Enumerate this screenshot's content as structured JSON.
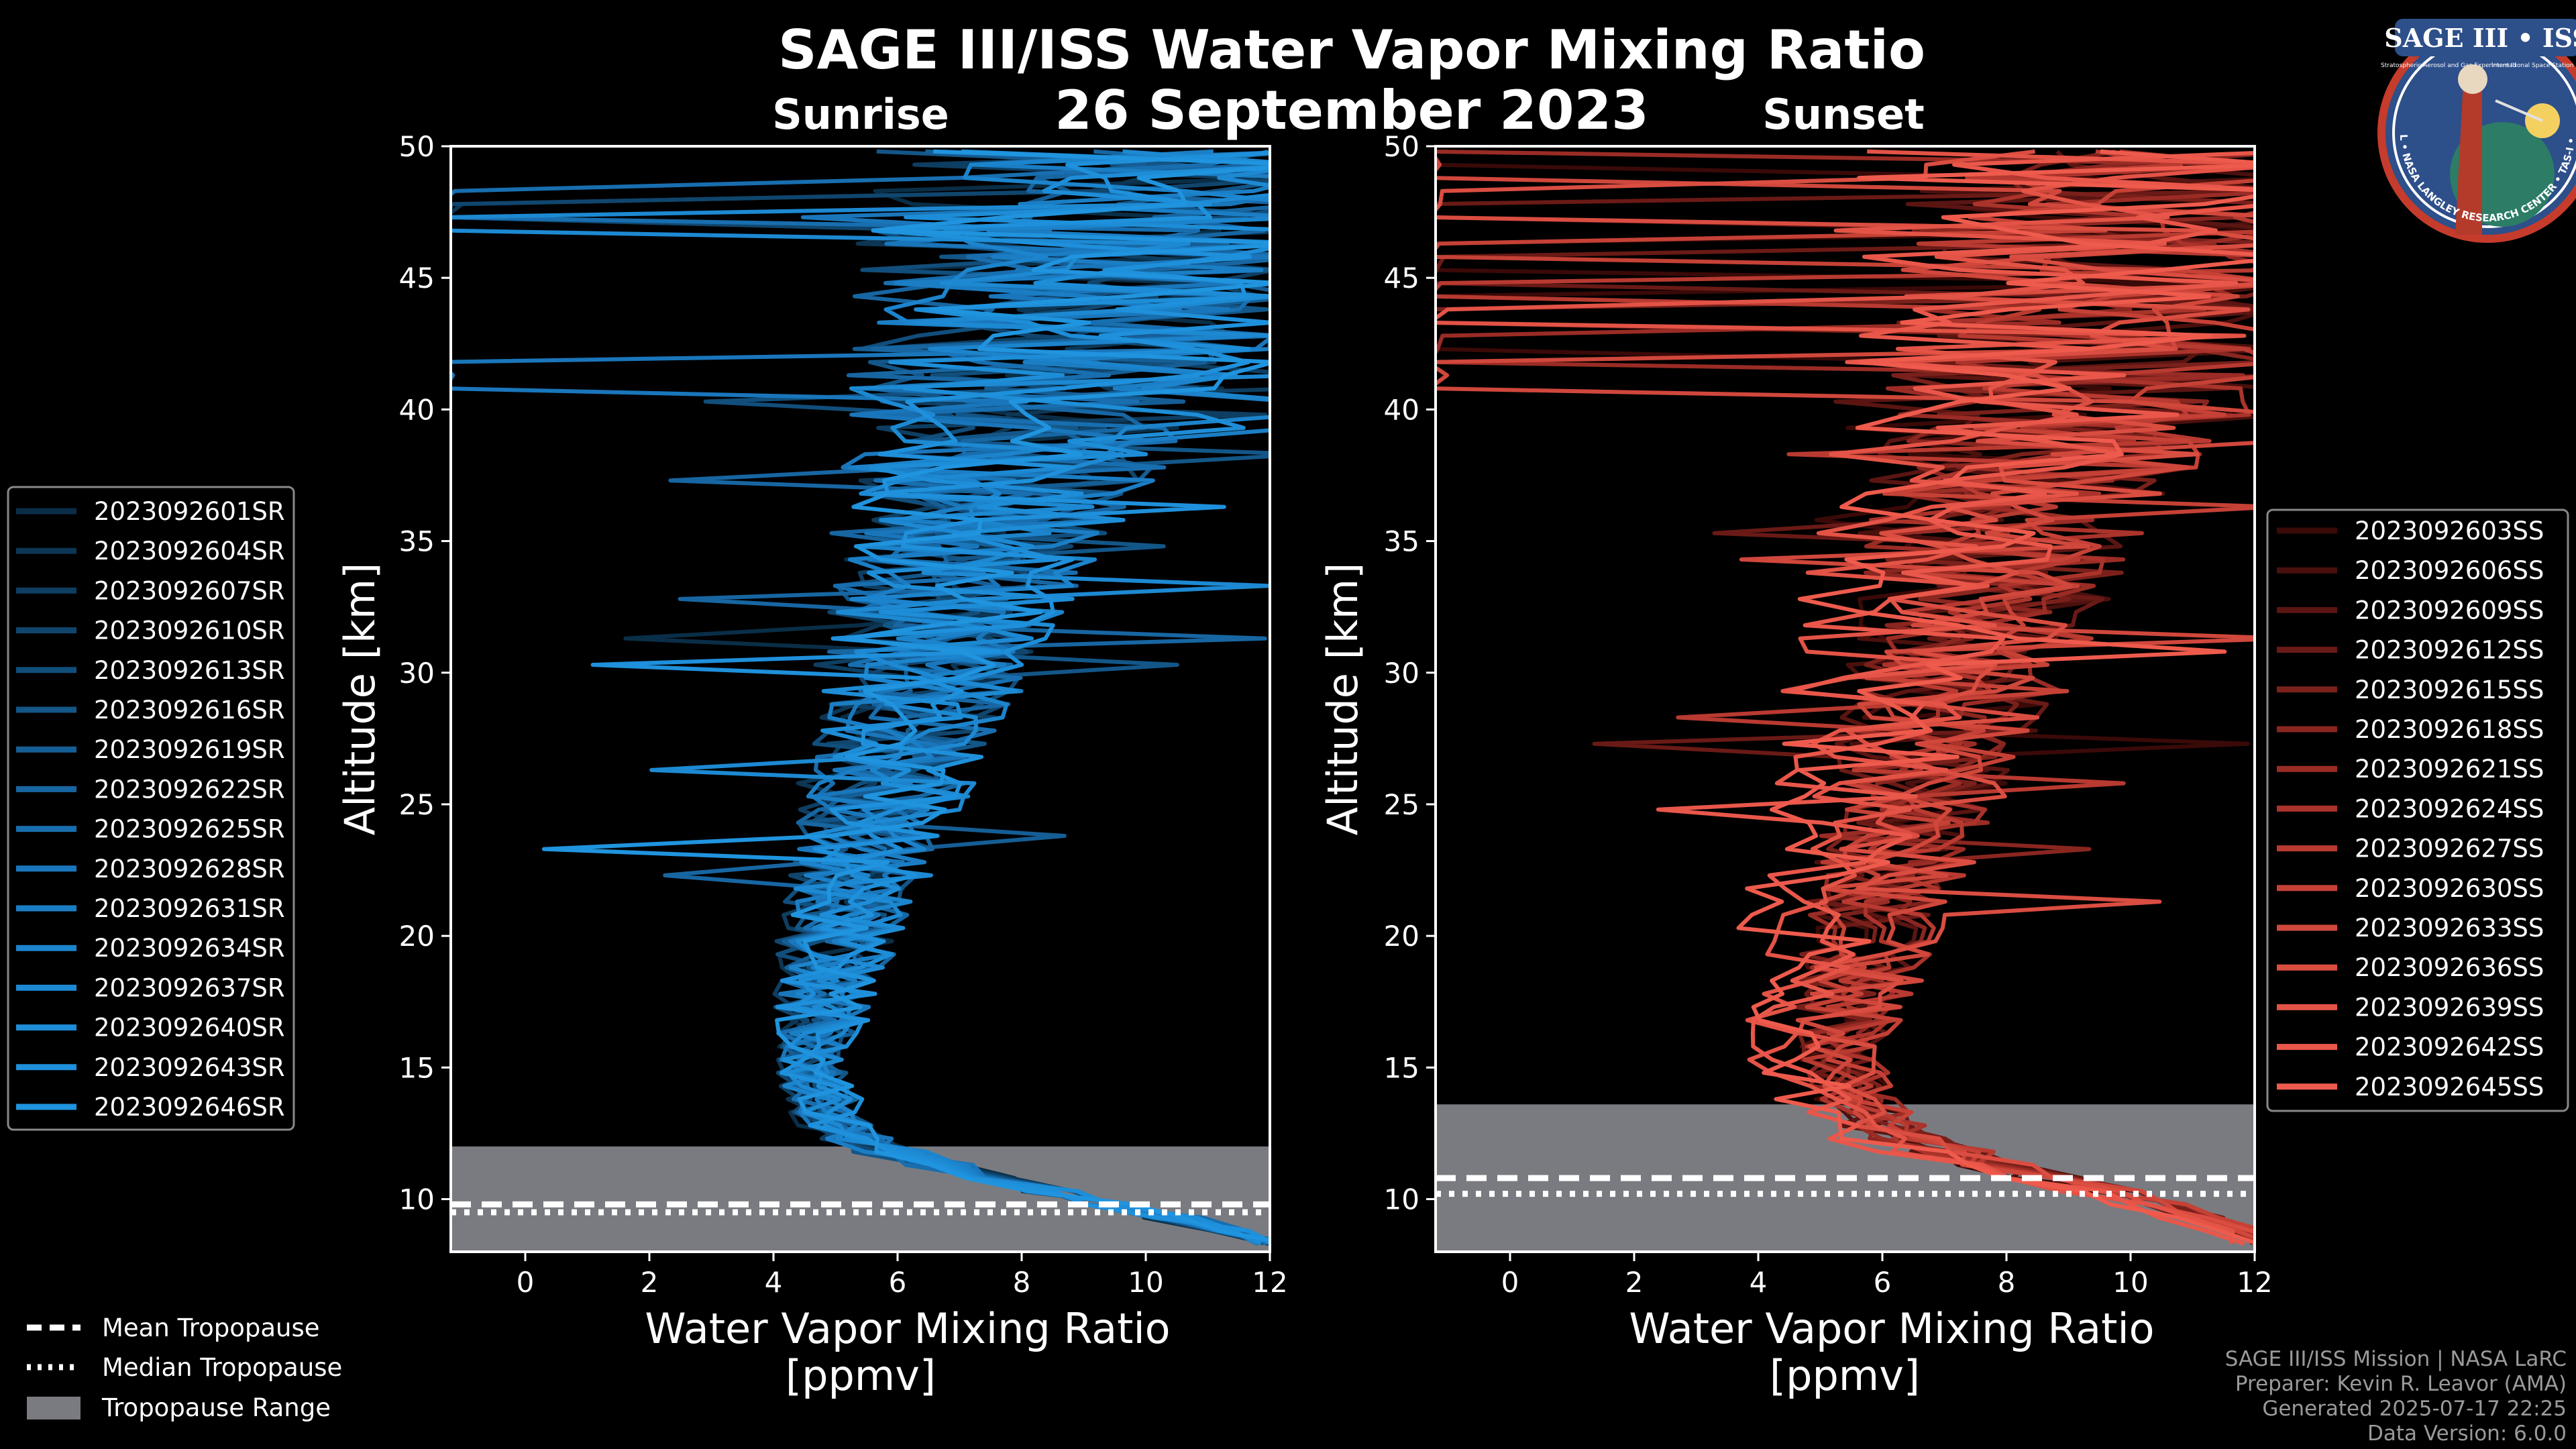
{
  "colors": {
    "background": "#000000",
    "sunrise_base": "#1f8fd8",
    "sunset_base": "#ee5a4c",
    "tropopause_range": "#7a7b80",
    "mean_line": "#ffffff",
    "median_line": "#ffffff"
  },
  "header": {
    "title": "SAGE III/ISS Water Vapor Mixing Ratio",
    "date": "26 September 2023",
    "left_panel_title": "Sunrise",
    "right_panel_title": "Sunset"
  },
  "logo": {
    "text_top": "SAGE III • ISS",
    "text_sub_left": "Stratospheric Aerosol and Gas Experiment III",
    "text_sub_right": "International Space Station",
    "text_ring": "BALL • NASA LANGLEY RESEARCH CENTER • TAS-I • ESA",
    "icon": "mission-patch-icon"
  },
  "credits": {
    "line1": "SAGE III/ISS Mission | NASA LaRC",
    "line2": "Preparer: Kevin R. Leavor (AMA)",
    "line3": "Generated 2025-07-17 22:25",
    "line4": "Data Version: 6.0.0"
  },
  "tropopause_legend": {
    "mean": "Mean Tropopause",
    "median": "Median Tropopause",
    "range": "Tropopause Range"
  },
  "chart_data": [
    {
      "type": "line",
      "panel": "sunrise",
      "title": "Sunrise",
      "xlabel": "Water Vapor Mixing Ratio\n[ppmv]",
      "xlabel_line1": "Water Vapor Mixing Ratio",
      "xlabel_line2": "[ppmv]",
      "ylabel": "Altitude [km]",
      "xlim": [
        -1.2,
        12
      ],
      "ylim": [
        8,
        50
      ],
      "xticks": [
        "0",
        "2",
        "4",
        "6",
        "8",
        "10",
        "12"
      ],
      "xtick_values": [
        0,
        2,
        4,
        6,
        8,
        10,
        12
      ],
      "yticks": [
        "10",
        "15",
        "20",
        "25",
        "30",
        "35",
        "40",
        "45",
        "50"
      ],
      "ytick_values": [
        10,
        15,
        20,
        25,
        30,
        35,
        40,
        45,
        50
      ],
      "grid": false,
      "legend_position": "left",
      "tropopause": {
        "mean_km": 9.8,
        "median_km": 9.5,
        "range_km": [
          8,
          12
        ]
      },
      "profile_shape": {
        "altitude_km": [
          8.5,
          10,
          11,
          12,
          13,
          15,
          17,
          20,
          25,
          30,
          35,
          40,
          45,
          50
        ],
        "median_ppmv": [
          12,
          9,
          7,
          5.5,
          4.8,
          4.5,
          4.6,
          5.0,
          5.6,
          6.3,
          7.0,
          8.0,
          9.0,
          10.0
        ],
        "noise_ppmv": [
          0.3,
          0.6,
          0.6,
          0.6,
          0.6,
          0.6,
          0.8,
          1.0,
          1.3,
          1.7,
          2.2,
          3.0,
          3.8,
          4.5
        ]
      },
      "series": [
        {
          "name": "2023092601SR",
          "color": "#0a2e47"
        },
        {
          "name": "2023092604SR",
          "color": "#0c3654"
        },
        {
          "name": "2023092607SR",
          "color": "#0e3e61"
        },
        {
          "name": "2023092610SR",
          "color": "#10466e"
        },
        {
          "name": "2023092613SR",
          "color": "#114e7b"
        },
        {
          "name": "2023092616SR",
          "color": "#135688"
        },
        {
          "name": "2023092619SR",
          "color": "#155e95"
        },
        {
          "name": "2023092622SR",
          "color": "#1766a2"
        },
        {
          "name": "2023092625SR",
          "color": "#186eaf"
        },
        {
          "name": "2023092628SR",
          "color": "#1a76bb"
        },
        {
          "name": "2023092631SR",
          "color": "#1b7ec5"
        },
        {
          "name": "2023092634SR",
          "color": "#1c84cc"
        },
        {
          "name": "2023092637SR",
          "color": "#1d89d2"
        },
        {
          "name": "2023092640SR",
          "color": "#1e8dd7"
        },
        {
          "name": "2023092643SR",
          "color": "#1f90db"
        },
        {
          "name": "2023092646SR",
          "color": "#2094de"
        }
      ]
    },
    {
      "type": "line",
      "panel": "sunset",
      "title": "Sunset",
      "xlabel": "Water Vapor Mixing Ratio\n[ppmv]",
      "xlabel_line1": "Water Vapor Mixing Ratio",
      "xlabel_line2": "[ppmv]",
      "ylabel": "Altitude [km]",
      "xlim": [
        -1.2,
        12
      ],
      "ylim": [
        8,
        50
      ],
      "xticks": [
        "0",
        "2",
        "4",
        "6",
        "8",
        "10",
        "12"
      ],
      "xtick_values": [
        0,
        2,
        4,
        6,
        8,
        10,
        12
      ],
      "yticks": [
        "10",
        "15",
        "20",
        "25",
        "30",
        "35",
        "40",
        "45",
        "50"
      ],
      "ytick_values": [
        10,
        15,
        20,
        25,
        30,
        35,
        40,
        45,
        50
      ],
      "grid": false,
      "legend_position": "right",
      "tropopause": {
        "mean_km": 10.8,
        "median_km": 10.2,
        "range_km": [
          8,
          13.6
        ]
      },
      "profile_shape": {
        "altitude_km": [
          8.5,
          10,
          11,
          12,
          13,
          15,
          17,
          20,
          25,
          30,
          35,
          40,
          45,
          50
        ],
        "median_ppmv": [
          12,
          10,
          8,
          6.5,
          5.5,
          5.0,
          5.0,
          5.3,
          6.0,
          6.8,
          7.5,
          8.5,
          9.5,
          10.5
        ],
        "noise_ppmv": [
          0.3,
          0.5,
          0.6,
          0.7,
          0.7,
          0.7,
          0.9,
          1.1,
          1.4,
          1.8,
          2.3,
          3.0,
          3.8,
          4.5
        ]
      },
      "series": [
        {
          "name": "2023092603SS",
          "color": "#3a0a08"
        },
        {
          "name": "2023092606SS",
          "color": "#4a100d"
        },
        {
          "name": "2023092609SS",
          "color": "#5a1512"
        },
        {
          "name": "2023092612SS",
          "color": "#6a1a16"
        },
        {
          "name": "2023092615SS",
          "color": "#7a201b"
        },
        {
          "name": "2023092618SS",
          "color": "#8a2620"
        },
        {
          "name": "2023092621SS",
          "color": "#9a2c25"
        },
        {
          "name": "2023092624SS",
          "color": "#aa332b"
        },
        {
          "name": "2023092627SS",
          "color": "#b83a31"
        },
        {
          "name": "2023092630SS",
          "color": "#c54136"
        },
        {
          "name": "2023092633SS",
          "color": "#d0473c"
        },
        {
          "name": "2023092636SS",
          "color": "#da4d41"
        },
        {
          "name": "2023092639SS",
          "color": "#e35346"
        },
        {
          "name": "2023092642SS",
          "color": "#e9574a"
        },
        {
          "name": "2023092645SS",
          "color": "#ee5b4d"
        }
      ]
    }
  ]
}
